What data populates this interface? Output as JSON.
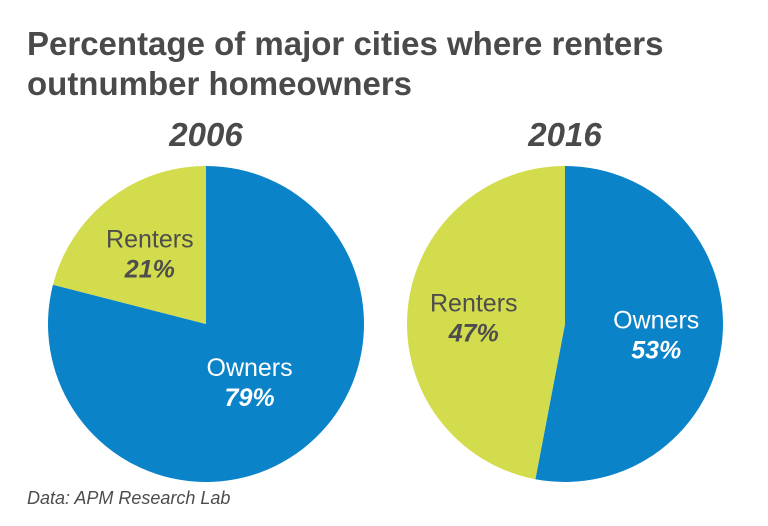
{
  "title": "Percentage of major cities where renters outnumber homeowners",
  "source": "Data: APM Research Lab",
  "colors": {
    "owners": "#0a83c8",
    "renters": "#d3dc4d",
    "owners_text": "#ffffff",
    "renters_text": "#4d4d4d"
  },
  "chart_data": [
    {
      "type": "pie",
      "title": "2006",
      "slices": [
        {
          "label": "Owners",
          "value": 79,
          "display": "79%"
        },
        {
          "label": "Renters",
          "value": 21,
          "display": "21%"
        }
      ]
    },
    {
      "type": "pie",
      "title": "2016",
      "slices": [
        {
          "label": "Owners",
          "value": 53,
          "display": "53%"
        },
        {
          "label": "Renters",
          "value": 47,
          "display": "47%"
        }
      ]
    }
  ]
}
